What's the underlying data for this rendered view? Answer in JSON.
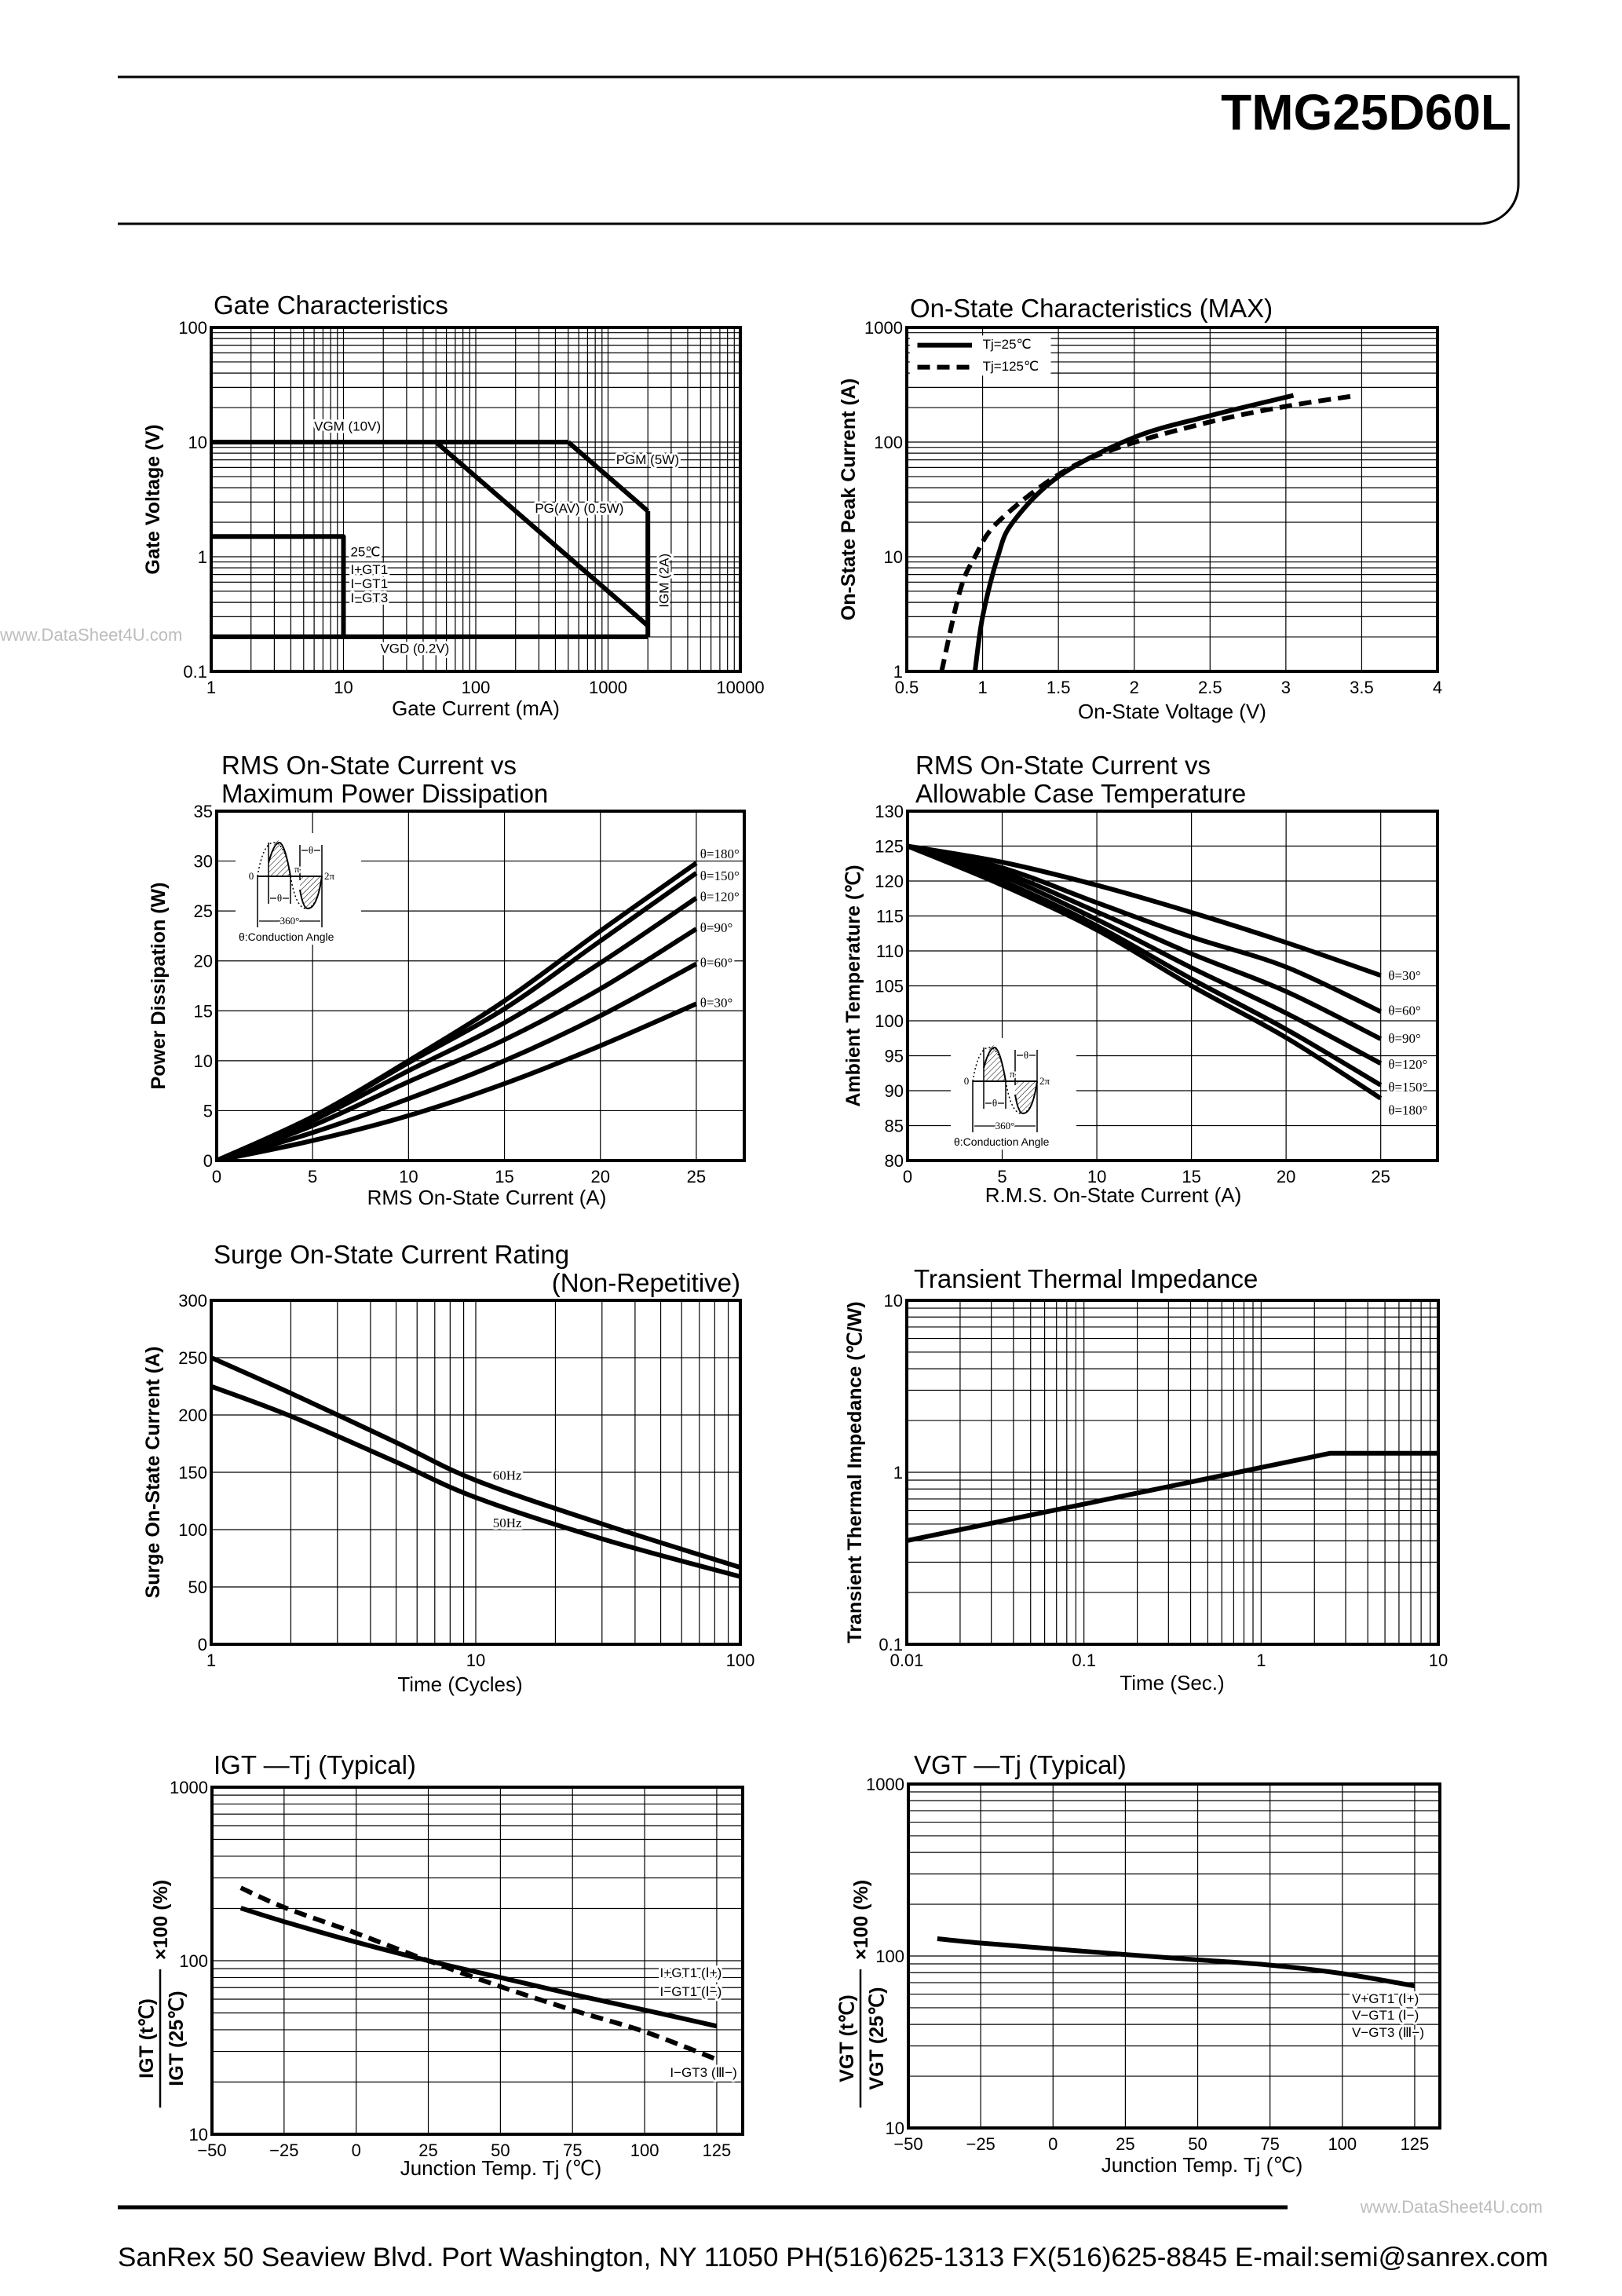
{
  "header": {
    "part_number": "TMG25D60L"
  },
  "watermark": "www.DataSheet4U.com",
  "footer": {
    "address": "SanRex 50 Seaview Blvd. Port Washington, NY 11050 PH(516)625-1313 FX(516)625-8845 E-mail:semi@sanrex.com"
  },
  "inset": {
    "caption": "θ:Conduction Angle",
    "period": "360°",
    "zero": "0",
    "pi": "π",
    "two_pi": "2π",
    "theta": "θ"
  },
  "chart_data": [
    {
      "type": "line",
      "title": [
        "Gate Characteristics"
      ],
      "xlabel": "Gate Current (mA)",
      "ylabel": "Gate Voltage (V)",
      "xscale": "log",
      "yscale": "log",
      "xlim": [
        1,
        10000
      ],
      "ylim": [
        0.1,
        100
      ],
      "xticks": [
        "1",
        "10",
        "100",
        "1000",
        "10000"
      ],
      "yticks": [
        "0.1",
        "1",
        "10",
        "100"
      ],
      "grid": true,
      "series": [
        {
          "name": "VGM (10V)",
          "style": "solid",
          "x": [
            1,
            500
          ],
          "y": [
            10,
            10
          ]
        },
        {
          "name": "PGM (5W)",
          "style": "solid",
          "x": [
            500,
            2000
          ],
          "y": [
            10,
            2.5
          ]
        },
        {
          "name": "IGM (2A)",
          "style": "solid",
          "x": [
            2000,
            2000
          ],
          "y": [
            2.5,
            0.2
          ]
        },
        {
          "name": "PG(AV) (0.5W)",
          "style": "solid",
          "x": [
            50,
            2000
          ],
          "y": [
            10,
            0.25
          ]
        },
        {
          "name": "VGD (0.2V)",
          "style": "solid",
          "x": [
            1,
            2000
          ],
          "y": [
            0.2,
            0.2
          ]
        },
        {
          "name": "",
          "style": "solid",
          "x": [
            1,
            10,
            10
          ],
          "y": [
            1.5,
            1.5,
            0.2
          ]
        }
      ],
      "annotations": [
        "25℃",
        "I+GT1",
        "I−GT1",
        "I−GT3"
      ]
    },
    {
      "type": "line",
      "title": [
        "On-State Characteristics (MAX)"
      ],
      "xlabel": "On-State Voltage (V)",
      "ylabel": "On-State Peak Current (A)",
      "xscale": "linear",
      "yscale": "log",
      "xlim": [
        0.5,
        4
      ],
      "ylim": [
        1,
        1000
      ],
      "xticks": [
        "0.5",
        "1",
        "1.5",
        "2",
        "2.5",
        "3",
        "3.5",
        "4"
      ],
      "yticks": [
        "1",
        "10",
        "100",
        "1000"
      ],
      "grid": true,
      "legend": "top-left",
      "series": [
        {
          "name": "Tj=25℃",
          "style": "solid",
          "x": [
            0.95,
            1.0,
            1.1,
            1.2,
            1.5,
            2.0,
            2.5,
            3.05
          ],
          "y": [
            1,
            3,
            10,
            20,
            50,
            110,
            170,
            255
          ]
        },
        {
          "name": "Tj=125℃",
          "style": "dashed",
          "x": [
            0.73,
            0.85,
            0.95,
            1.1,
            1.5,
            1.9,
            2.5,
            3.0,
            3.47
          ],
          "y": [
            1,
            5,
            10,
            20,
            52,
            90,
            150,
            205,
            255
          ]
        }
      ]
    },
    {
      "type": "line",
      "title": [
        "RMS On-State Current vs",
        "Maximum Power Dissipation"
      ],
      "xlabel": "RMS On-State Current (A)",
      "ylabel": "Power Dissipation (W)",
      "xscale": "linear",
      "yscale": "linear",
      "xlim": [
        0,
        27.5
      ],
      "ylim": [
        0,
        35
      ],
      "xticks": [
        "0",
        "5",
        "10",
        "15",
        "20",
        "25"
      ],
      "yticks": [
        "0",
        "5",
        "10",
        "15",
        "20",
        "25",
        "30",
        "35"
      ],
      "grid": true,
      "series": [
        {
          "name": "θ=180°",
          "style": "solid",
          "x": [
            0,
            5,
            10,
            15,
            20,
            25
          ],
          "y": [
            0,
            4.4,
            10,
            16,
            23,
            29.8
          ]
        },
        {
          "name": "θ=150°",
          "style": "solid",
          "x": [
            0,
            5,
            10,
            15,
            20,
            25
          ],
          "y": [
            0,
            4.3,
            9.8,
            15.2,
            22,
            28.8
          ]
        },
        {
          "name": "θ=120°",
          "style": "solid",
          "x": [
            0,
            5,
            10,
            15,
            20,
            25
          ],
          "y": [
            0,
            4.0,
            9.0,
            13.8,
            19.8,
            26.3
          ]
        },
        {
          "name": "θ=90°",
          "style": "solid",
          "x": [
            0,
            5,
            10,
            15,
            20,
            25
          ],
          "y": [
            0,
            3.5,
            7.9,
            12.1,
            17.2,
            23.2
          ]
        },
        {
          "name": "θ=60°",
          "style": "solid",
          "x": [
            0,
            5,
            10,
            15,
            20,
            25
          ],
          "y": [
            0,
            2.8,
            6.2,
            10,
            14.5,
            19.7
          ]
        },
        {
          "name": "θ=30°",
          "style": "solid",
          "x": [
            0,
            5,
            10,
            15,
            20,
            25
          ],
          "y": [
            0,
            2.0,
            4.5,
            7.7,
            11.5,
            15.7
          ]
        }
      ]
    },
    {
      "type": "line",
      "title": [
        "RMS On-State Current vs",
        "Allowable Case Temperature"
      ],
      "xlabel": "R.M.S. On-State Current (A)",
      "ylabel": "Ambient Temperature (℃)",
      "xscale": "linear",
      "yscale": "linear",
      "xlim": [
        0,
        28
      ],
      "ylim": [
        80,
        130
      ],
      "xticks": [
        "0",
        "5",
        "10",
        "15",
        "20",
        "25"
      ],
      "yticks": [
        "80",
        "85",
        "90",
        "95",
        "100",
        "105",
        "110",
        "115",
        "120",
        "125",
        "130"
      ],
      "grid": true,
      "series": [
        {
          "name": "θ=30°",
          "style": "solid",
          "x": [
            0,
            5,
            10,
            15,
            20,
            25
          ],
          "y": [
            125,
            122.7,
            119.4,
            115.5,
            111.2,
            106.5
          ]
        },
        {
          "name": "θ=60°",
          "style": "solid",
          "x": [
            0,
            5,
            10,
            15,
            20,
            25
          ],
          "y": [
            125,
            121.9,
            116.9,
            112.0,
            107.7,
            101.3
          ]
        },
        {
          "name": "θ=90°",
          "style": "solid",
          "x": [
            0,
            5,
            10,
            15,
            20,
            25
          ],
          "y": [
            125,
            121.3,
            115.6,
            109.6,
            104.2,
            97.4
          ]
        },
        {
          "name": "θ=120°",
          "style": "solid",
          "x": [
            0,
            5,
            10,
            15,
            20,
            25
          ],
          "y": [
            125,
            120.7,
            114.5,
            107.6,
            101.1,
            93.9
          ]
        },
        {
          "name": "θ=150°",
          "style": "solid",
          "x": [
            0,
            5,
            10,
            15,
            20,
            25
          ],
          "y": [
            125,
            120.0,
            113.6,
            106.0,
            98.8,
            90.8
          ]
        },
        {
          "name": "θ=180°",
          "style": "solid",
          "x": [
            0,
            5,
            10,
            15,
            20,
            25
          ],
          "y": [
            125,
            119.4,
            113.0,
            105.0,
            97.6,
            88.9
          ]
        }
      ]
    },
    {
      "type": "line",
      "title": [
        "Surge On-State Current Rating",
        "(Non-Repetitive)"
      ],
      "xlabel": "Time (Cycles)",
      "ylabel": "Surge On-State Current (A)",
      "xscale": "log",
      "yscale": "linear",
      "xlim": [
        1,
        100
      ],
      "ylim": [
        0,
        300
      ],
      "xticks": [
        "1",
        "10",
        "100"
      ],
      "yticks": [
        "0",
        "50",
        "100",
        "150",
        "200",
        "250",
        "300"
      ],
      "grid": true,
      "series": [
        {
          "name": "60Hz",
          "style": "solid",
          "x": [
            1,
            2,
            5,
            10,
            30,
            100
          ],
          "y": [
            250,
            219,
            176,
            143,
            105,
            67
          ]
        },
        {
          "name": "50Hz",
          "style": "solid",
          "x": [
            1,
            2,
            5,
            10,
            30,
            100
          ],
          "y": [
            225,
            199,
            159,
            128,
            92,
            59
          ]
        }
      ]
    },
    {
      "type": "line",
      "title": [
        "Transient Thermal Impedance"
      ],
      "xlabel": "Time (Sec.)",
      "ylabel": "Transient Thermal Impedance (℃/W)",
      "xscale": "log",
      "yscale": "log",
      "xlim": [
        0.01,
        10
      ],
      "ylim": [
        0.1,
        10
      ],
      "xticks": [
        "0.01",
        "0.1",
        "1",
        "10"
      ],
      "yticks": [
        "0.1",
        "1",
        "10"
      ],
      "grid": true,
      "series": [
        {
          "style": "solid",
          "x": [
            0.01,
            2.44,
            10
          ],
          "y": [
            0.4,
            1.29,
            1.29
          ]
        }
      ]
    },
    {
      "type": "line",
      "title": [
        "IGT —Tj (Typical)"
      ],
      "xlabel": "Junction Temp. Tj (℃)",
      "ylabel": {
        "numerator": "IGT (t℃)",
        "denominator": "IGT (25℃)",
        "factor": "×100 (%)"
      },
      "xscale": "linear",
      "yscale": "log",
      "xlim": [
        -50,
        134
      ],
      "ylim": [
        10,
        1000
      ],
      "xticks": [
        "−50",
        "−25",
        "0",
        "25",
        "50",
        "75",
        "100",
        "125"
      ],
      "yticks": [
        "10",
        "100",
        "1000"
      ],
      "grid": true,
      "series": [
        {
          "style": "solid",
          "x": [
            -40,
            -25,
            0,
            25,
            50,
            75,
            100,
            125
          ],
          "y": [
            201,
            168,
            128,
            100,
            80,
            64,
            52,
            42
          ]
        },
        {
          "style": "dashed",
          "x": [
            -40,
            -25,
            0,
            25,
            50,
            75,
            100,
            125
          ],
          "y": [
            263,
            203,
            144,
            100,
            71,
            52,
            39,
            27
          ]
        }
      ],
      "annotations": [
        "I+GT1 (Ⅰ+)",
        "I−GT1 (Ⅰ−)",
        "I−GT3 (Ⅲ−)"
      ]
    },
    {
      "type": "line",
      "title": [
        "VGT —Tj (Typical)"
      ],
      "xlabel": "Junction Temp. Tj (℃)",
      "ylabel": {
        "numerator": "VGT (t℃)",
        "denominator": "VGT (25℃)",
        "factor": "×100 (%)"
      },
      "xscale": "linear",
      "yscale": "log",
      "xlim": [
        -50,
        133.7
      ],
      "ylim": [
        10,
        1000
      ],
      "xticks": [
        "−50",
        "−25",
        "0",
        "25",
        "50",
        "75",
        "100",
        "125"
      ],
      "yticks": [
        "10",
        "100",
        "1000"
      ],
      "grid": true,
      "series": [
        {
          "style": "solid",
          "x": [
            -40,
            -25,
            0,
            25,
            50,
            75,
            100,
            125
          ],
          "y": [
            126,
            119,
            110,
            102,
            95,
            88.5,
            79,
            67
          ]
        }
      ],
      "annotations": [
        "V+GT1 (Ⅰ+)",
        "V−GT1 (Ⅰ−)",
        "V−GT3 (Ⅲ−)"
      ]
    }
  ]
}
